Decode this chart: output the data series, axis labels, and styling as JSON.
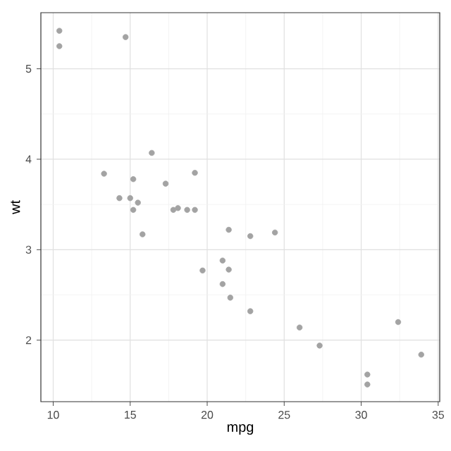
{
  "chart_data": {
    "type": "scatter",
    "xlabel": "mpg",
    "ylabel": "wt",
    "x": [
      21.0,
      21.0,
      22.8,
      21.4,
      18.7,
      18.1,
      14.3,
      24.4,
      22.8,
      19.2,
      17.8,
      16.4,
      17.3,
      15.2,
      10.4,
      10.4,
      14.7,
      32.4,
      30.4,
      33.9,
      21.5,
      15.5,
      15.2,
      13.3,
      19.2,
      27.3,
      26.0,
      30.4,
      15.8,
      19.7,
      15.0,
      21.4
    ],
    "values": [
      2.62,
      2.88,
      2.32,
      3.22,
      3.44,
      3.46,
      3.57,
      3.19,
      3.15,
      3.44,
      3.44,
      4.07,
      3.73,
      3.78,
      5.25,
      5.42,
      5.35,
      2.2,
      1.62,
      1.84,
      2.47,
      3.52,
      3.44,
      3.84,
      3.85,
      1.94,
      2.14,
      1.51,
      3.17,
      2.77,
      3.57,
      2.78
    ],
    "color": "#a3a3a3",
    "marker": "circle",
    "grid": true,
    "xlim": [
      9.2,
      35.1
    ],
    "ylim": [
      1.32,
      5.62
    ],
    "xticks": [
      10,
      15,
      20,
      25,
      30,
      35
    ],
    "yticks": [
      2,
      3,
      4,
      5
    ]
  }
}
